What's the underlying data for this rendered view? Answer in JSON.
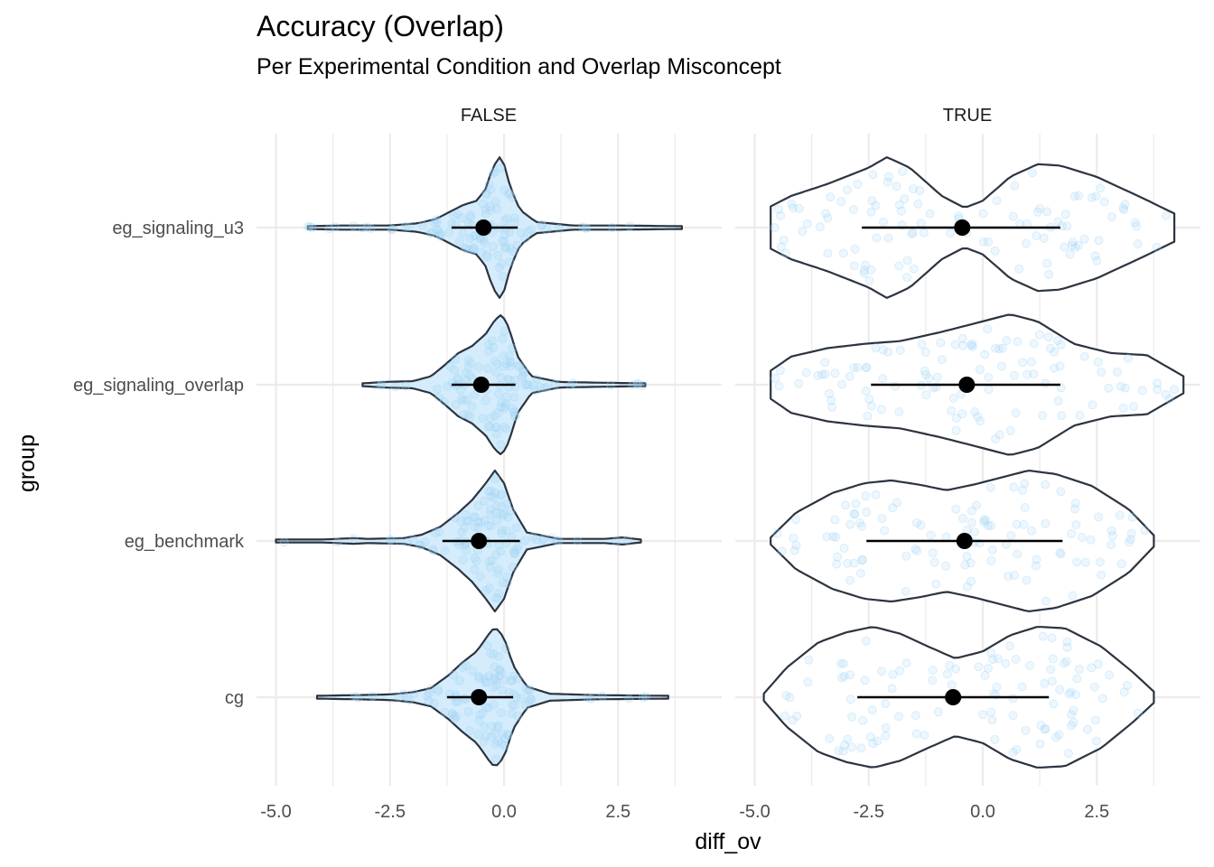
{
  "chart_data": {
    "type": "violin",
    "title": "Accuracy (Overlap)",
    "subtitle": "Per Experimental Condition and Overlap Misconcept",
    "xlabel": "diff_ov",
    "ylabel": "group",
    "facets": [
      "FALSE",
      "TRUE"
    ],
    "categories": [
      "eg_signaling_u3",
      "eg_signaling_overlap",
      "eg_benchmark",
      "cg"
    ],
    "x_ticks": [
      "-5.0",
      "-2.5",
      "0.0",
      "2.5"
    ],
    "x_tick_values": [
      -5.0,
      -2.5,
      0.0,
      2.5
    ],
    "xlim": [
      -5.0,
      4.4
    ],
    "grid": true,
    "colors": {
      "violin_fill": "#d4ecfb",
      "violin_stroke": "#2c3440",
      "points": "#9fd3f5",
      "summary": "#000000",
      "grid": "#ebebeb"
    },
    "panels": [
      {
        "facet": "FALSE",
        "groups": [
          {
            "name": "eg_signaling_u3",
            "mean": -0.45,
            "ci_low": -1.15,
            "ci_high": 0.3,
            "range": [
              -4.3,
              3.9
            ],
            "shape": [
              [
                -4.3,
                0.02
              ],
              [
                -3.5,
                0.03
              ],
              [
                -2.5,
                0.03
              ],
              [
                -1.9,
                0.06
              ],
              [
                -1.5,
                0.12
              ],
              [
                -1.2,
                0.22
              ],
              [
                -0.9,
                0.32
              ],
              [
                -0.6,
                0.38
              ],
              [
                -0.4,
                0.55
              ],
              [
                -0.25,
                0.85
              ],
              [
                -0.1,
                1.0
              ],
              [
                0.0,
                0.9
              ],
              [
                0.15,
                0.55
              ],
              [
                0.35,
                0.25
              ],
              [
                0.7,
                0.08
              ],
              [
                1.5,
                0.03
              ],
              [
                2.5,
                0.03
              ],
              [
                3.9,
                0.02
              ]
            ]
          },
          {
            "name": "eg_signaling_overlap",
            "mean": -0.5,
            "ci_low": -1.15,
            "ci_high": 0.25,
            "range": [
              -3.1,
              3.1
            ],
            "shape": [
              [
                -3.1,
                0.02
              ],
              [
                -2.6,
                0.04
              ],
              [
                -2.0,
                0.05
              ],
              [
                -1.6,
                0.12
              ],
              [
                -1.3,
                0.28
              ],
              [
                -1.0,
                0.45
              ],
              [
                -0.7,
                0.55
              ],
              [
                -0.4,
                0.72
              ],
              [
                -0.2,
                0.92
              ],
              [
                -0.05,
                1.0
              ],
              [
                0.1,
                0.82
              ],
              [
                0.3,
                0.4
              ],
              [
                0.6,
                0.12
              ],
              [
                1.2,
                0.04
              ],
              [
                2.0,
                0.03
              ],
              [
                3.1,
                0.02
              ]
            ]
          },
          {
            "name": "eg_benchmark",
            "mean": -0.55,
            "ci_low": -1.35,
            "ci_high": 0.35,
            "range": [
              -5.0,
              3.0
            ],
            "shape": [
              [
                -5.0,
                0.02
              ],
              [
                -4.0,
                0.02
              ],
              [
                -3.3,
                0.04
              ],
              [
                -3.0,
                0.03
              ],
              [
                -2.2,
                0.04
              ],
              [
                -1.8,
                0.09
              ],
              [
                -1.4,
                0.2
              ],
              [
                -1.0,
                0.4
              ],
              [
                -0.7,
                0.58
              ],
              [
                -0.4,
                0.82
              ],
              [
                -0.2,
                1.0
              ],
              [
                0.0,
                0.82
              ],
              [
                0.2,
                0.45
              ],
              [
                0.5,
                0.12
              ],
              [
                1.2,
                0.03
              ],
              [
                2.2,
                0.03
              ],
              [
                2.6,
                0.05
              ],
              [
                3.0,
                0.02
              ]
            ]
          },
          {
            "name": "cg",
            "mean": -0.55,
            "ci_low": -1.25,
            "ci_high": 0.2,
            "range": [
              -4.1,
              3.6
            ],
            "shape": [
              [
                -4.1,
                0.02
              ],
              [
                -3.2,
                0.03
              ],
              [
                -2.5,
                0.04
              ],
              [
                -2.0,
                0.07
              ],
              [
                -1.6,
                0.13
              ],
              [
                -1.2,
                0.32
              ],
              [
                -0.9,
                0.5
              ],
              [
                -0.6,
                0.65
              ],
              [
                -0.35,
                0.88
              ],
              [
                -0.2,
                1.0
              ],
              [
                0.0,
                0.85
              ],
              [
                0.2,
                0.45
              ],
              [
                0.5,
                0.15
              ],
              [
                1.0,
                0.05
              ],
              [
                2.0,
                0.03
              ],
              [
                3.6,
                0.02
              ]
            ]
          }
        ]
      },
      {
        "facet": "TRUE",
        "groups": [
          {
            "name": "eg_signaling_u3",
            "mean": -0.45,
            "ci_low": -2.65,
            "ci_high": 1.7,
            "range": [
              -4.65,
              4.2
            ],
            "shape": [
              [
                -4.65,
                0.3
              ],
              [
                -4.2,
                0.45
              ],
              [
                -3.4,
                0.62
              ],
              [
                -2.5,
                0.85
              ],
              [
                -2.1,
                1.0
              ],
              [
                -1.6,
                0.85
              ],
              [
                -0.9,
                0.45
              ],
              [
                -0.4,
                0.28
              ],
              [
                0.0,
                0.38
              ],
              [
                0.6,
                0.72
              ],
              [
                1.2,
                0.9
              ],
              [
                1.7,
                0.88
              ],
              [
                2.5,
                0.72
              ],
              [
                3.5,
                0.42
              ],
              [
                4.2,
                0.2
              ]
            ]
          },
          {
            "name": "eg_signaling_overlap",
            "mean": -0.35,
            "ci_low": -2.45,
            "ci_high": 1.7,
            "range": [
              -4.65,
              4.4
            ],
            "shape": [
              [
                -4.65,
                0.2
              ],
              [
                -4.2,
                0.4
              ],
              [
                -3.4,
                0.52
              ],
              [
                -2.6,
                0.58
              ],
              [
                -1.8,
                0.62
              ],
              [
                -0.9,
                0.75
              ],
              [
                0.0,
                0.9
              ],
              [
                0.6,
                1.0
              ],
              [
                1.2,
                0.9
              ],
              [
                2.0,
                0.58
              ],
              [
                2.8,
                0.45
              ],
              [
                3.6,
                0.42
              ],
              [
                4.4,
                0.12
              ]
            ]
          },
          {
            "name": "eg_benchmark",
            "mean": -0.4,
            "ci_low": -2.55,
            "ci_high": 1.75,
            "range": [
              -4.65,
              3.75
            ],
            "shape": [
              [
                -4.65,
                0.05
              ],
              [
                -4.1,
                0.4
              ],
              [
                -3.3,
                0.68
              ],
              [
                -2.6,
                0.82
              ],
              [
                -2.0,
                0.86
              ],
              [
                -1.4,
                0.8
              ],
              [
                -0.8,
                0.72
              ],
              [
                -0.2,
                0.8
              ],
              [
                0.4,
                0.9
              ],
              [
                1.0,
                1.0
              ],
              [
                1.6,
                0.95
              ],
              [
                2.4,
                0.78
              ],
              [
                3.2,
                0.45
              ],
              [
                3.75,
                0.08
              ]
            ]
          },
          {
            "name": "cg",
            "mean": -0.65,
            "ci_low": -2.75,
            "ci_high": 1.45,
            "range": [
              -4.8,
              3.75
            ],
            "shape": [
              [
                -4.8,
                0.05
              ],
              [
                -4.3,
                0.42
              ],
              [
                -3.6,
                0.78
              ],
              [
                -3.0,
                0.92
              ],
              [
                -2.4,
                1.0
              ],
              [
                -1.8,
                0.9
              ],
              [
                -1.2,
                0.72
              ],
              [
                -0.6,
                0.55
              ],
              [
                0.0,
                0.65
              ],
              [
                0.6,
                0.88
              ],
              [
                1.2,
                1.0
              ],
              [
                1.8,
                0.98
              ],
              [
                2.6,
                0.72
              ],
              [
                3.3,
                0.35
              ],
              [
                3.75,
                0.08
              ]
            ]
          }
        ]
      }
    ]
  }
}
